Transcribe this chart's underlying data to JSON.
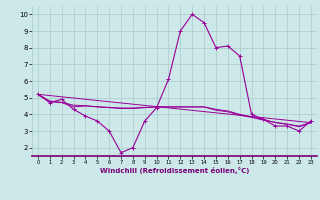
{
  "xlabel": "Windchill (Refroidissement éolien,°C)",
  "background_color": "#cce8e8",
  "grid_color": "#aacccc",
  "line_color": "#990099",
  "spine_color": "#770077",
  "xlim": [
    -0.5,
    23.5
  ],
  "ylim": [
    1.5,
    10.5
  ],
  "yticks": [
    2,
    3,
    4,
    5,
    6,
    7,
    8,
    9,
    10
  ],
  "xticks": [
    0,
    1,
    2,
    3,
    4,
    5,
    6,
    7,
    8,
    9,
    10,
    11,
    12,
    13,
    14,
    15,
    16,
    17,
    18,
    19,
    20,
    21,
    22,
    23
  ],
  "series1_x": [
    0,
    1,
    2,
    3,
    4,
    5,
    6,
    7,
    8,
    9,
    10,
    11,
    12,
    13,
    14,
    15,
    16,
    17,
    18,
    19,
    20,
    21,
    22,
    23
  ],
  "series1_y": [
    5.2,
    4.7,
    4.9,
    4.3,
    3.9,
    3.6,
    3.0,
    1.7,
    2.0,
    3.6,
    4.4,
    6.1,
    9.0,
    10.0,
    9.5,
    8.0,
    8.1,
    7.5,
    4.0,
    3.7,
    3.3,
    3.3,
    3.0,
    3.6
  ],
  "series2_x": [
    0,
    1,
    2,
    3,
    4,
    5,
    6,
    7,
    8,
    9,
    10,
    11,
    12,
    13,
    14,
    15,
    16,
    17,
    18,
    19,
    20,
    21,
    22,
    23
  ],
  "series2_y": [
    5.2,
    4.75,
    4.7,
    4.45,
    4.5,
    4.45,
    4.4,
    4.35,
    4.35,
    4.4,
    4.45,
    4.45,
    4.45,
    4.45,
    4.45,
    4.3,
    4.2,
    4.0,
    3.85,
    3.7,
    3.5,
    3.4,
    3.3,
    3.5
  ],
  "series3_x": [
    0,
    1,
    2,
    3,
    4,
    5,
    6,
    7,
    8,
    9,
    10,
    11,
    12,
    13,
    14,
    15,
    16,
    17,
    18,
    19,
    20,
    21,
    22,
    23
  ],
  "series3_y": [
    5.2,
    4.8,
    4.72,
    4.55,
    4.52,
    4.45,
    4.42,
    4.38,
    4.38,
    4.42,
    4.44,
    4.44,
    4.44,
    4.44,
    4.44,
    4.25,
    4.15,
    3.95,
    3.82,
    3.65,
    3.52,
    3.42,
    3.25,
    3.5
  ],
  "series4_x": [
    0,
    23
  ],
  "series4_y": [
    5.2,
    3.5
  ]
}
